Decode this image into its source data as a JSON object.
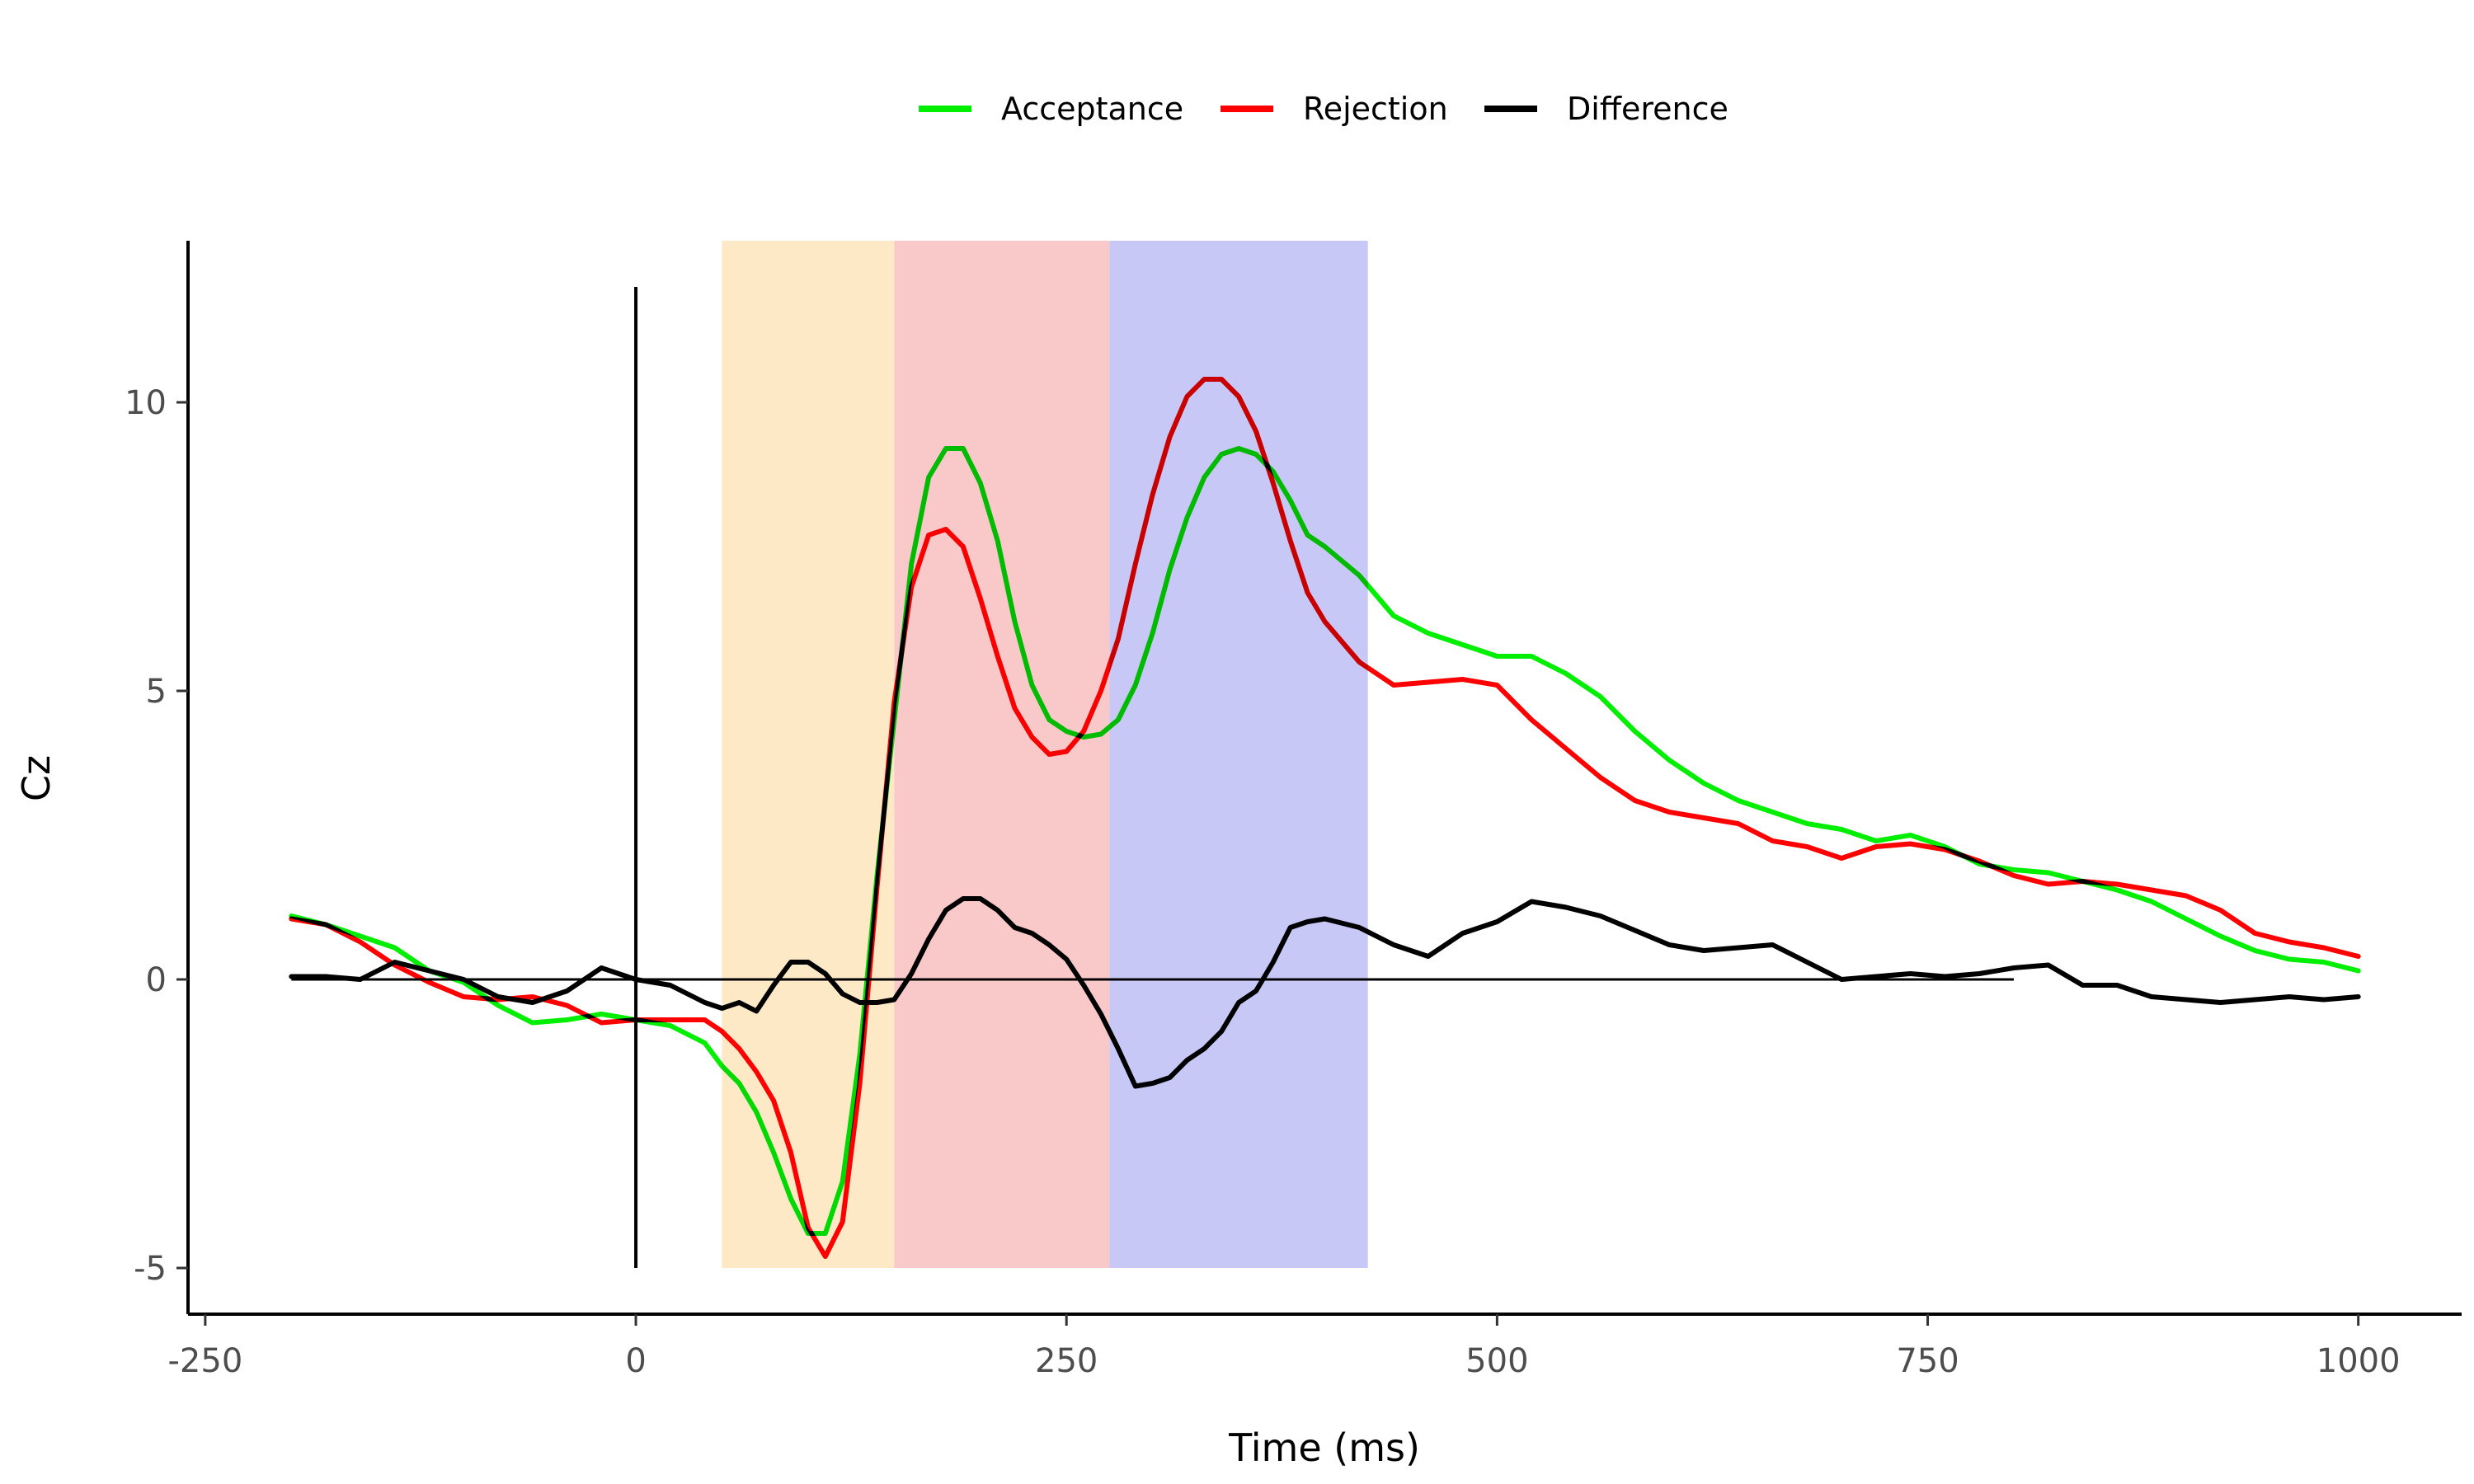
{
  "chart_data": {
    "type": "line",
    "xlabel": "Time (ms)",
    "ylabel": "Cz",
    "xlim": [
      -260,
      1060
    ],
    "ylim": [
      -5.8,
      12.8
    ],
    "x_ticks": [
      -250,
      0,
      250,
      500,
      750,
      1000
    ],
    "x_tick_labels": [
      "-250",
      "0",
      "250",
      "500",
      "750",
      "1000"
    ],
    "y_ticks": [
      -5,
      0,
      5,
      10
    ],
    "y_tick_labels": [
      "-5",
      "0",
      "5",
      "10"
    ],
    "legend_position": "top",
    "shaded_windows": [
      {
        "x0": 50,
        "x1": 150,
        "y0": -5,
        "y1": 12.8,
        "color": "#fde9c6"
      },
      {
        "x0": 150,
        "x1": 275,
        "y0": -5,
        "y1": 12.8,
        "color": "#f9c9c9"
      },
      {
        "x0": 275,
        "x1": 425,
        "y0": -5,
        "y1": 12.8,
        "color": "#c8c8f7"
      }
    ],
    "reference_lines": [
      {
        "orientation": "vertical",
        "x": 0,
        "y0": -5,
        "y1": 12
      },
      {
        "orientation": "horizontal",
        "y": 0,
        "x0": -200,
        "x1": 800
      }
    ],
    "series": [
      {
        "name": "Acceptance",
        "color": "#00ee00",
        "x": [
          -200,
          -180,
          -160,
          -140,
          -120,
          -100,
          -80,
          -60,
          -40,
          -20,
          0,
          20,
          40,
          50,
          60,
          70,
          80,
          90,
          100,
          110,
          120,
          130,
          140,
          150,
          160,
          170,
          180,
          190,
          200,
          210,
          220,
          230,
          240,
          250,
          260,
          270,
          280,
          290,
          300,
          310,
          320,
          330,
          340,
          350,
          360,
          370,
          380,
          390,
          400,
          420,
          440,
          460,
          480,
          500,
          520,
          540,
          560,
          580,
          600,
          620,
          640,
          660,
          680,
          700,
          720,
          740,
          760,
          780,
          800,
          820,
          840,
          860,
          880,
          900,
          920,
          940,
          960,
          980,
          1000
        ],
        "y": [
          1.1,
          0.95,
          0.75,
          0.55,
          0.15,
          -0.05,
          -0.45,
          -0.75,
          -0.7,
          -0.6,
          -0.7,
          -0.8,
          -1.1,
          -1.5,
          -1.8,
          -2.3,
          -3.0,
          -3.8,
          -4.4,
          -4.4,
          -3.5,
          -1.3,
          1.8,
          4.5,
          7.2,
          8.7,
          9.2,
          9.2,
          8.6,
          7.6,
          6.2,
          5.1,
          4.5,
          4.3,
          4.2,
          4.25,
          4.5,
          5.1,
          6.0,
          7.1,
          8.0,
          8.7,
          9.1,
          9.2,
          9.1,
          8.8,
          8.3,
          7.7,
          7.5,
          7.0,
          6.3,
          6.0,
          5.8,
          5.6,
          5.6,
          5.3,
          4.9,
          4.3,
          3.8,
          3.4,
          3.1,
          2.9,
          2.7,
          2.6,
          2.4,
          2.5,
          2.3,
          2.0,
          1.9,
          1.85,
          1.7,
          1.55,
          1.35,
          1.05,
          0.75,
          0.5,
          0.35,
          0.3,
          0.15
        ]
      },
      {
        "name": "Rejection",
        "color": "#ff0000",
        "x": [
          -200,
          -180,
          -160,
          -140,
          -120,
          -100,
          -80,
          -60,
          -40,
          -20,
          0,
          20,
          40,
          50,
          60,
          70,
          80,
          90,
          100,
          110,
          120,
          130,
          140,
          150,
          160,
          170,
          180,
          190,
          200,
          210,
          220,
          230,
          240,
          250,
          260,
          270,
          280,
          290,
          300,
          310,
          320,
          330,
          340,
          350,
          360,
          370,
          380,
          390,
          400,
          420,
          440,
          460,
          480,
          500,
          520,
          540,
          560,
          580,
          600,
          620,
          640,
          660,
          680,
          700,
          720,
          740,
          760,
          780,
          800,
          820,
          840,
          860,
          880,
          900,
          920,
          940,
          960,
          980,
          1000
        ],
        "y": [
          1.05,
          0.95,
          0.65,
          0.25,
          -0.05,
          -0.3,
          -0.35,
          -0.3,
          -0.45,
          -0.75,
          -0.7,
          -0.7,
          -0.7,
          -0.9,
          -1.2,
          -1.6,
          -2.1,
          -3.0,
          -4.3,
          -4.8,
          -4.2,
          -1.8,
          1.6,
          4.8,
          6.8,
          7.7,
          7.8,
          7.5,
          6.6,
          5.6,
          4.7,
          4.2,
          3.9,
          3.95,
          4.3,
          5.0,
          5.9,
          7.2,
          8.4,
          9.4,
          10.1,
          10.4,
          10.4,
          10.1,
          9.5,
          8.6,
          7.6,
          6.7,
          6.2,
          5.5,
          5.1,
          5.15,
          5.2,
          5.1,
          4.5,
          4.0,
          3.5,
          3.1,
          2.9,
          2.8,
          2.7,
          2.4,
          2.3,
          2.1,
          2.3,
          2.35,
          2.25,
          2.05,
          1.8,
          1.65,
          1.7,
          1.65,
          1.55,
          1.45,
          1.2,
          0.8,
          0.65,
          0.55,
          0.4
        ]
      },
      {
        "name": "Difference",
        "color": "#000000",
        "x": [
          -200,
          -180,
          -160,
          -140,
          -120,
          -100,
          -80,
          -60,
          -40,
          -20,
          0,
          20,
          40,
          50,
          60,
          70,
          80,
          90,
          100,
          110,
          120,
          130,
          140,
          150,
          160,
          170,
          180,
          190,
          200,
          210,
          220,
          230,
          240,
          250,
          260,
          270,
          280,
          290,
          300,
          310,
          320,
          330,
          340,
          350,
          360,
          370,
          380,
          390,
          400,
          420,
          440,
          460,
          480,
          500,
          520,
          540,
          560,
          580,
          600,
          620,
          640,
          660,
          680,
          700,
          720,
          740,
          760,
          780,
          800,
          820,
          840,
          860,
          880,
          900,
          920,
          940,
          960,
          980,
          1000
        ],
        "y": [
          0.05,
          0.05,
          0.0,
          0.3,
          0.15,
          0.0,
          -0.3,
          -0.4,
          -0.2,
          0.2,
          0.0,
          -0.1,
          -0.4,
          -0.5,
          -0.4,
          -0.55,
          -0.1,
          0.3,
          0.3,
          0.1,
          -0.25,
          -0.4,
          -0.4,
          -0.35,
          0.1,
          0.7,
          1.2,
          1.4,
          1.4,
          1.2,
          0.9,
          0.8,
          0.6,
          0.35,
          -0.1,
          -0.6,
          -1.2,
          -1.85,
          -1.8,
          -1.7,
          -1.4,
          -1.2,
          -0.9,
          -0.4,
          -0.2,
          0.3,
          0.9,
          1.0,
          1.05,
          0.9,
          0.6,
          0.4,
          0.8,
          1.0,
          1.35,
          1.25,
          1.1,
          0.85,
          0.6,
          0.5,
          0.55,
          0.6,
          0.3,
          0.0,
          0.05,
          0.1,
          0.05,
          0.1,
          0.2,
          0.25,
          -0.1,
          -0.1,
          -0.3,
          -0.35,
          -0.4,
          -0.35,
          -0.3,
          -0.35,
          -0.3
        ]
      }
    ]
  }
}
